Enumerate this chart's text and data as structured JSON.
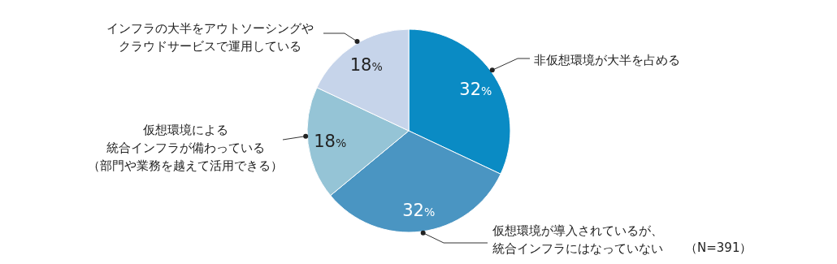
{
  "chart_data": {
    "type": "pie",
    "categories": [
      "非仮想環境が大半を占める",
      "仮想環境が導入されているが、統合インフラにはなっていない",
      "仮想環境による統合インフラが備わっている（部門や業務を越えて活用できる）",
      "インフラの大半をアウトソーシングやクラウドサービスで運用している"
    ],
    "values": [
      32,
      32,
      18,
      18
    ],
    "value_labels": [
      "32%",
      "32%",
      "18%",
      "18%"
    ],
    "colors": [
      "#0a8bc4",
      "#4a95c2",
      "#95c4d6",
      "#c6d4ea"
    ],
    "annotations": [
      "（N=391）"
    ]
  }
}
